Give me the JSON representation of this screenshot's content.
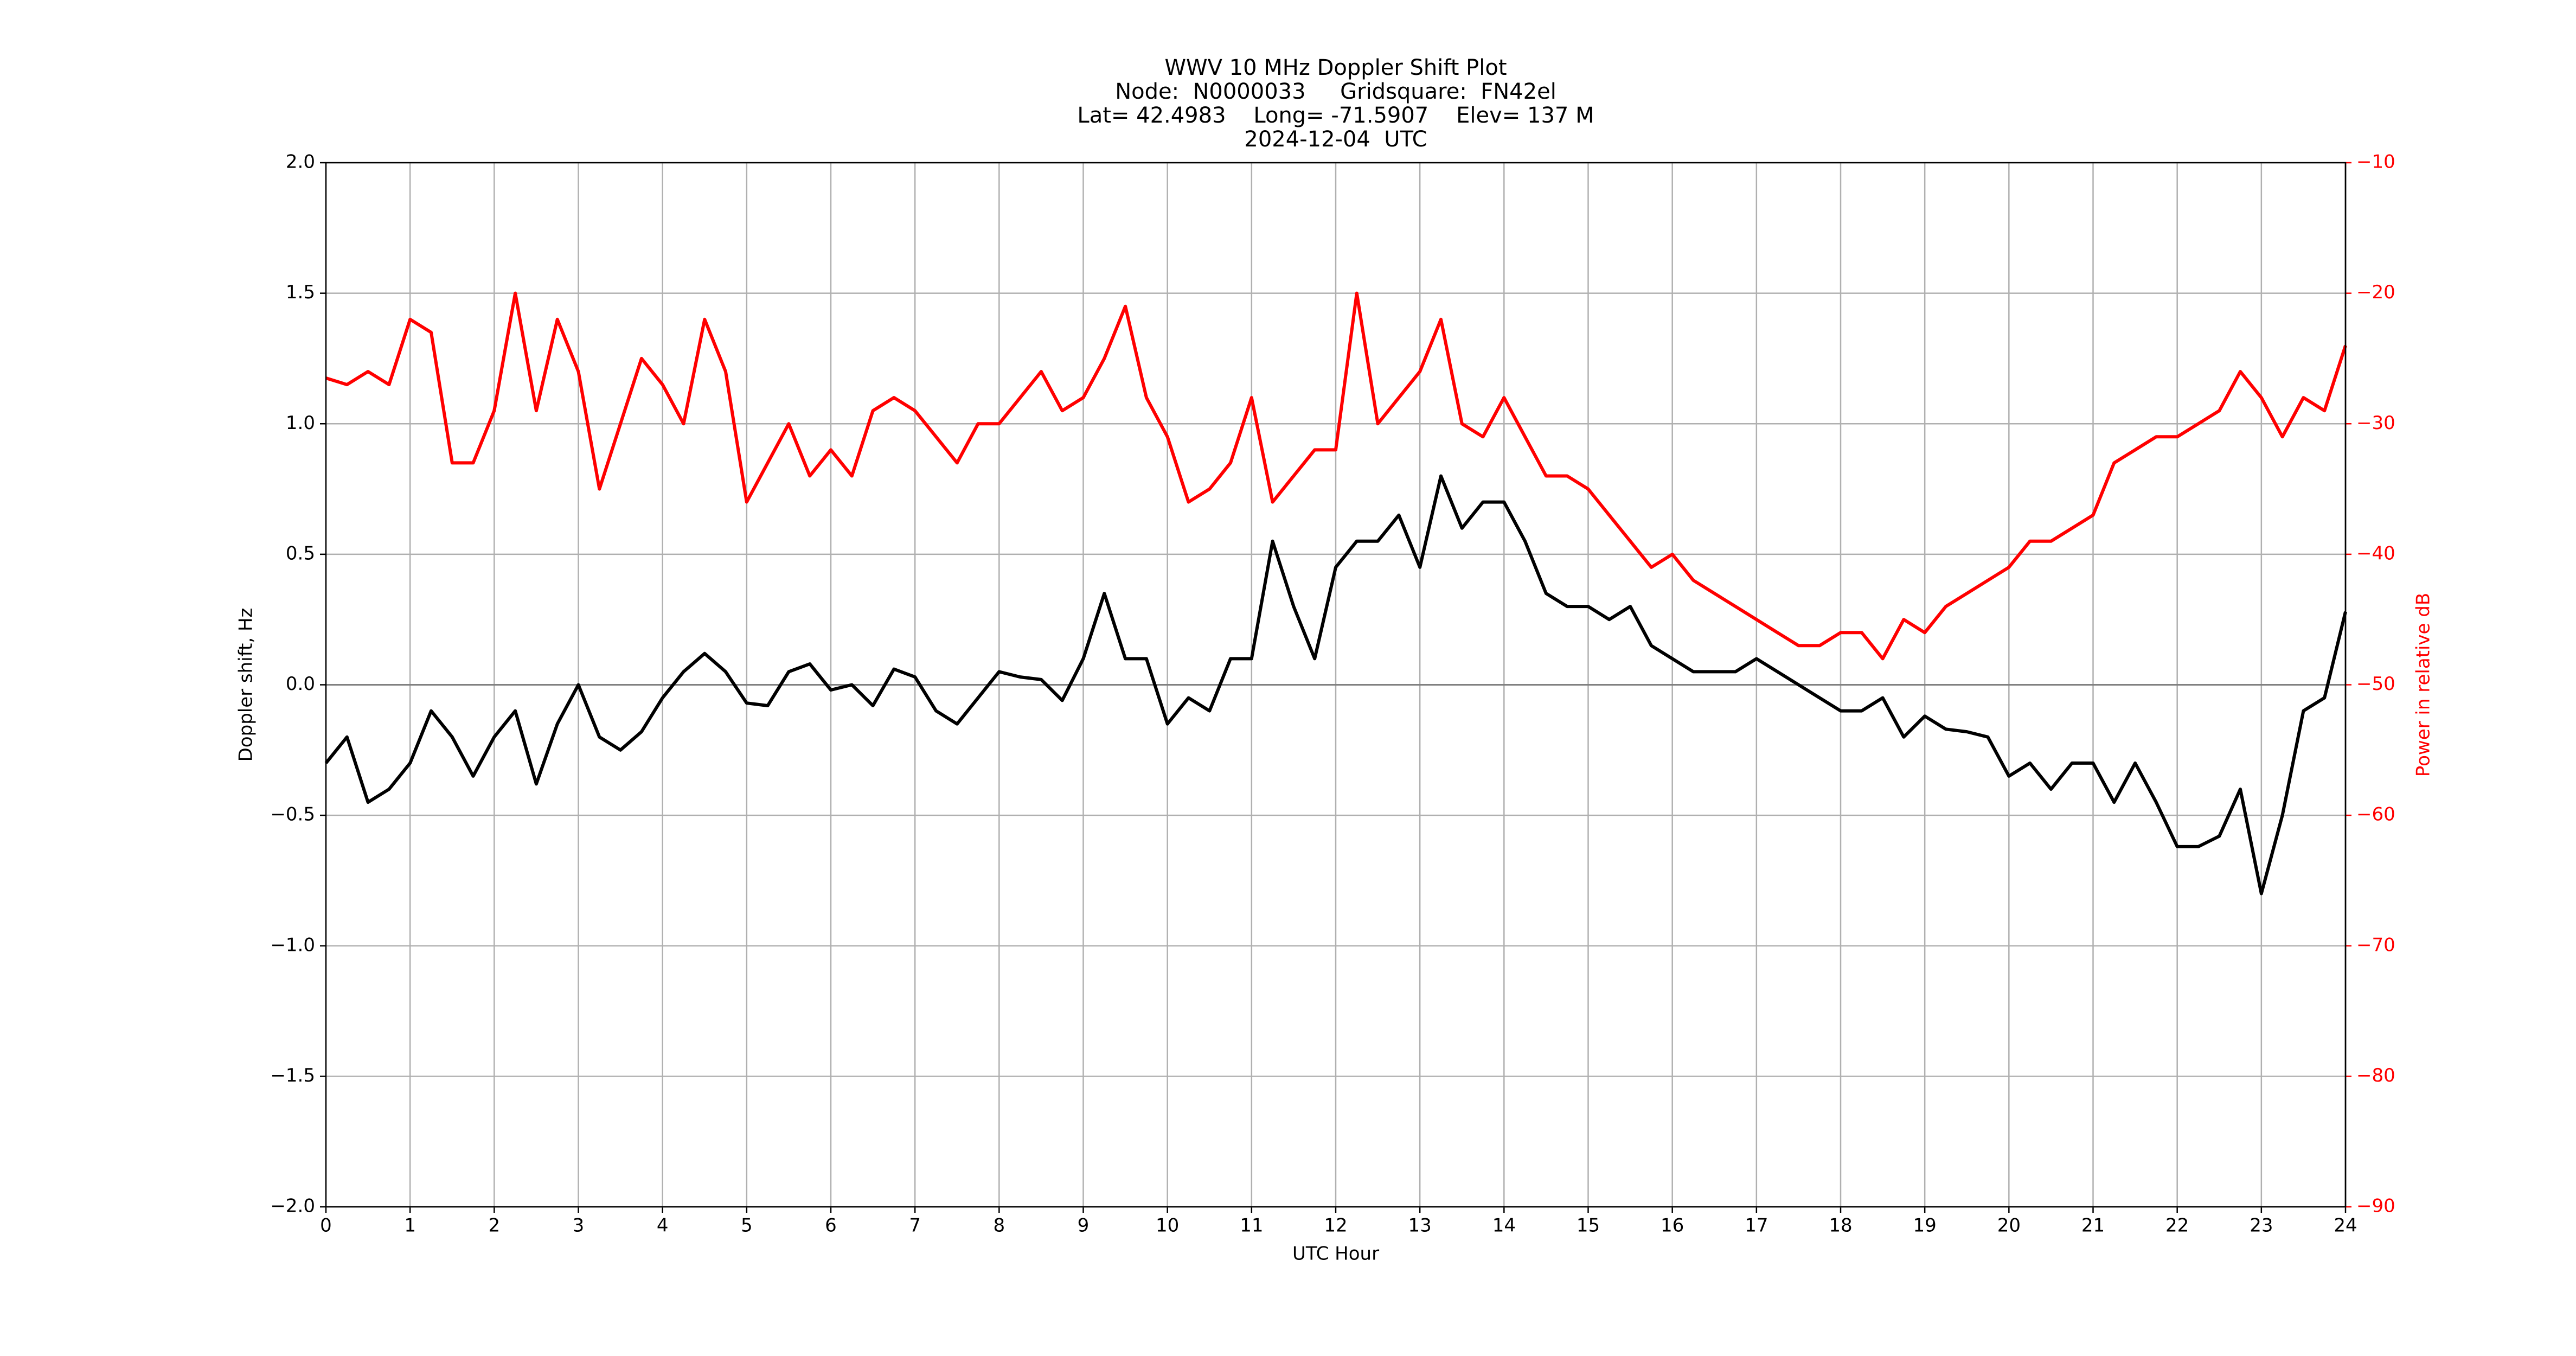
{
  "chart_data": {
    "type": "line",
    "title": [
      "WWV 10 MHz Doppler Shift Plot",
      "Node:  N0000033     Gridsquare:  FN42el",
      "Lat= 42.4983    Long= -71.5907    Elev= 137 M",
      "2024-12-04  UTC"
    ],
    "xlabel": "UTC Hour",
    "ylabel": "Doppler shift, Hz",
    "y2label": "Power in relative dB",
    "x": [
      0,
      0.25,
      0.5,
      0.75,
      1,
      1.25,
      1.5,
      1.75,
      2,
      2.25,
      2.5,
      2.75,
      3,
      3.25,
      3.5,
      3.75,
      4,
      4.25,
      4.5,
      4.75,
      5,
      5.25,
      5.5,
      5.75,
      6,
      6.25,
      6.5,
      6.75,
      7,
      7.25,
      7.5,
      7.75,
      8,
      8.25,
      8.5,
      8.75,
      9,
      9.25,
      9.5,
      9.75,
      10,
      10.25,
      10.5,
      10.75,
      11,
      11.25,
      11.5,
      11.75,
      12,
      12.25,
      12.5,
      12.75,
      13,
      13.25,
      13.5,
      13.75,
      14,
      14.25,
      14.5,
      14.75,
      15,
      15.25,
      15.5,
      15.75,
      16,
      16.25,
      16.5,
      16.75,
      17,
      17.25,
      17.5,
      17.75,
      18,
      18.25,
      18.5,
      18.75,
      19,
      19.25,
      19.5,
      19.75,
      20,
      20.25,
      20.5,
      20.75,
      21,
      21.25,
      21.5,
      21.75,
      22,
      22.25,
      22.5,
      22.75,
      23,
      23.25,
      23.5,
      23.75,
      24
    ],
    "series": [
      {
        "name": "Doppler shift",
        "color": "#000000",
        "axis": "y",
        "values": [
          -0.3,
          -0.2,
          -0.45,
          -0.4,
          -0.3,
          -0.1,
          -0.2,
          -0.35,
          -0.2,
          -0.1,
          -0.38,
          -0.15,
          0.0,
          -0.2,
          -0.25,
          -0.18,
          -0.05,
          0.05,
          0.12,
          0.05,
          -0.07,
          -0.08,
          0.05,
          0.08,
          -0.02,
          0.0,
          -0.08,
          0.06,
          0.03,
          -0.1,
          -0.15,
          -0.05,
          0.05,
          0.03,
          0.02,
          -0.06,
          0.1,
          0.35,
          0.1,
          0.1,
          -0.15,
          -0.05,
          -0.1,
          0.1,
          0.1,
          0.55,
          0.3,
          0.1,
          0.45,
          0.55,
          0.55,
          0.65,
          0.45,
          0.8,
          0.6,
          0.7,
          0.7,
          0.55,
          0.35,
          0.3,
          0.3,
          0.25,
          0.3,
          0.15,
          0.1,
          0.05,
          0.05,
          0.05,
          0.1,
          0.05,
          0.0,
          -0.05,
          -0.1,
          -0.1,
          -0.05,
          -0.2,
          -0.12,
          -0.17,
          -0.18,
          -0.2,
          -0.35,
          -0.3,
          -0.4,
          -0.3,
          -0.3,
          -0.45,
          -0.3,
          -0.45,
          -0.62,
          -0.62,
          -0.58,
          -0.4,
          -0.8,
          -0.5,
          -0.1,
          -0.05,
          0.28
        ]
      },
      {
        "name": "Power",
        "color": "#ff0000",
        "axis": "y2",
        "values": [
          -26.5,
          -27,
          -26,
          -27,
          -22,
          -23,
          -33,
          -33,
          -29,
          -20,
          -29,
          -22,
          -26,
          -35,
          -30,
          -25,
          -27,
          -30,
          -22,
          -26,
          -36,
          -33,
          -30,
          -34,
          -32,
          -34,
          -29,
          -28,
          -29,
          -31,
          -33,
          -30,
          -30,
          -28,
          -26,
          -29,
          -28,
          -25,
          -21,
          -28,
          -31,
          -36,
          -35,
          -33,
          -28,
          -36,
          -34,
          -32,
          -32,
          -20,
          -30,
          -28,
          -26,
          -22,
          -30,
          -31,
          -28,
          -31,
          -34,
          -34,
          -35,
          -37,
          -39,
          -41,
          -40,
          -42,
          -43,
          -44,
          -45,
          -46,
          -47,
          -47,
          -46,
          -46,
          -48,
          -45,
          -46,
          -44,
          -43,
          -42,
          -41,
          -39,
          -39,
          -38,
          -37,
          -33,
          -32,
          -31,
          -31,
          -30,
          -29,
          -26,
          -28,
          -31,
          -28,
          -29,
          -24
        ]
      }
    ],
    "xlim": [
      0,
      24
    ],
    "xticks": [
      0,
      1,
      2,
      3,
      4,
      5,
      6,
      7,
      8,
      9,
      10,
      11,
      12,
      13,
      14,
      15,
      16,
      17,
      18,
      19,
      20,
      21,
      22,
      23,
      24
    ],
    "ylim": [
      -2,
      2
    ],
    "yticks": [
      {
        "value": -2,
        "label": "−2.0"
      },
      {
        "value": -1.5,
        "label": "−1.5"
      },
      {
        "value": -1,
        "label": "−1.0"
      },
      {
        "value": -0.5,
        "label": "−0.5"
      },
      {
        "value": 0,
        "label": "0.0"
      },
      {
        "value": 0.5,
        "label": "0.5"
      },
      {
        "value": 1,
        "label": "1.0"
      },
      {
        "value": 1.5,
        "label": "1.5"
      },
      {
        "value": 2,
        "label": "2.0"
      }
    ],
    "y2lim": [
      -90,
      -10
    ],
    "y2ticks": [
      {
        "value": -90,
        "label": "−90"
      },
      {
        "value": -80,
        "label": "−80"
      },
      {
        "value": -70,
        "label": "−70"
      },
      {
        "value": -60,
        "label": "−60"
      },
      {
        "value": -50,
        "label": "−50"
      },
      {
        "value": -40,
        "label": "−40"
      },
      {
        "value": -30,
        "label": "−30"
      },
      {
        "value": -20,
        "label": "−20"
      },
      {
        "value": -10,
        "label": "−10"
      }
    ],
    "y2color": "#ff0000",
    "hline": 0,
    "grid": true
  }
}
